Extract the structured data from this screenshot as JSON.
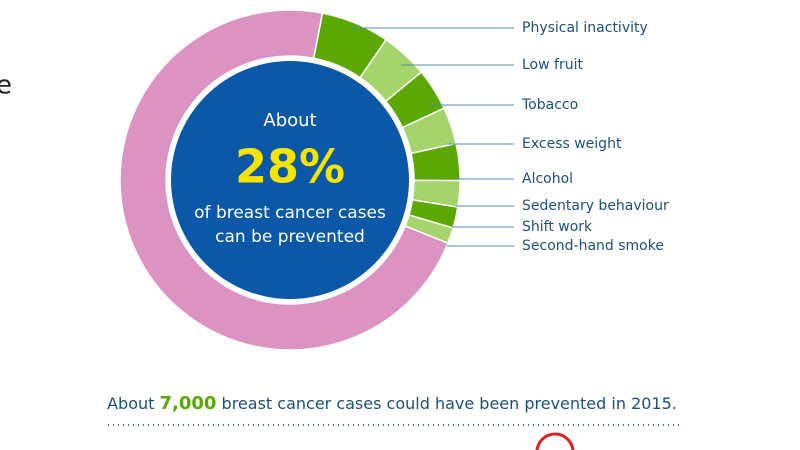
{
  "chart_data": {
    "type": "donut",
    "categories": [
      "Physical inactivity",
      "Low fruit",
      "Tobacco",
      "Excess weight",
      "Alcohol",
      "Sedentary behaviour",
      "Shift work",
      "Second-hand smoke",
      null
    ],
    "values": [
      6.5,
      4.5,
      4,
      3.5,
      3.5,
      2.5,
      2,
      1.5,
      72
    ],
    "colors": [
      "#5aa800",
      "#a5d46c",
      "#5aa800",
      "#a5d46c",
      "#5aa800",
      "#a5d46c",
      "#5aa800",
      "#a5d46c",
      "#dc93c1"
    ],
    "center_text": {
      "top": "About",
      "value": "28%",
      "line1": "of breast cancer cases",
      "line2": "can be prevented"
    },
    "footer": {
      "before": "About",
      "highlight": "7,000",
      "after": "breast cancer cases could have been prevented in 2015."
    },
    "left_fragment": "e"
  }
}
